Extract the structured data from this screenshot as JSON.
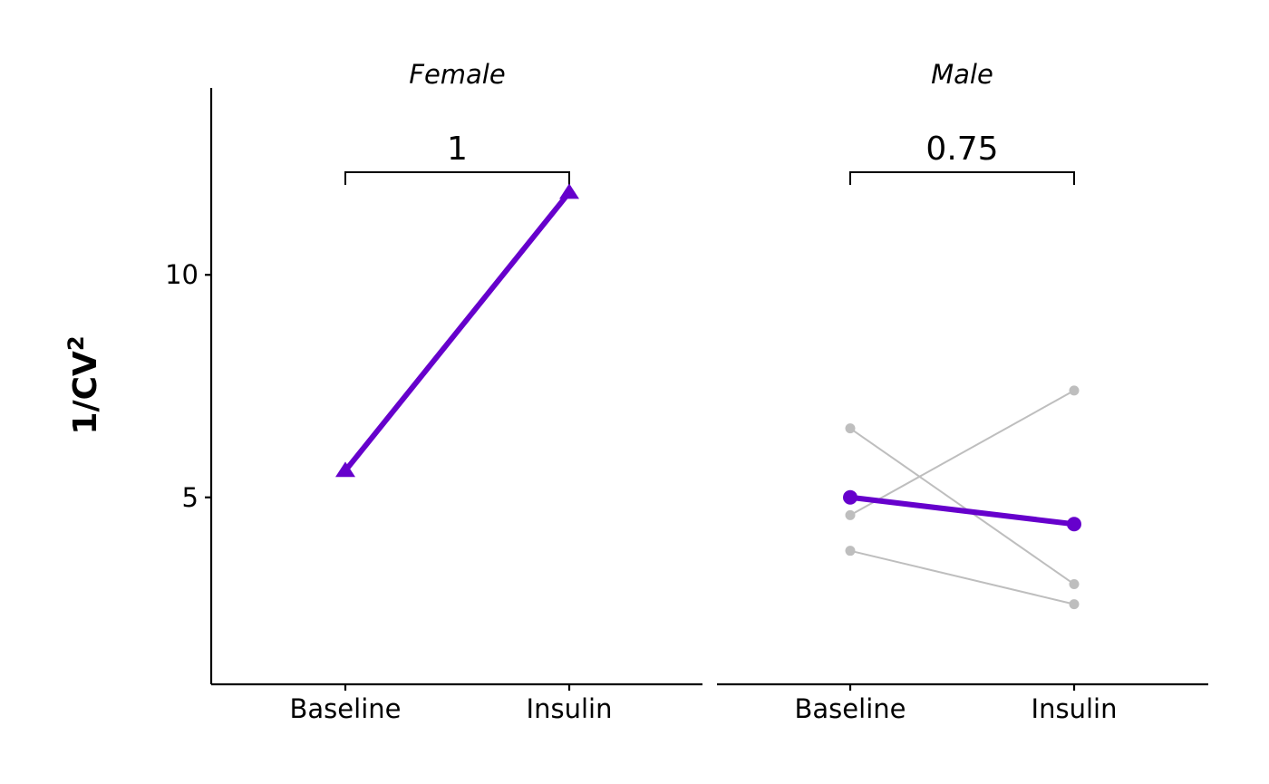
{
  "chart_data": {
    "type": "line",
    "ylabel": "1/CV",
    "ylabel_superscript": "2",
    "ylim": [
      0.8,
      14.2
    ],
    "yticks": [
      5,
      10
    ],
    "categories": [
      "Baseline",
      "Insulin"
    ],
    "colors": {
      "mean": "#6600cc",
      "individual": "#bebebe",
      "axis": "#000000"
    },
    "facets": [
      {
        "title": "Female",
        "p_value": "1",
        "marker": "triangle",
        "individuals": [],
        "mean": {
          "name": "mean",
          "values": [
            5.6,
            11.85
          ]
        }
      },
      {
        "title": "Male",
        "p_value": "0.75",
        "marker": "circle",
        "individuals": [
          {
            "name": "subject-1",
            "values": [
              6.55,
              3.05
            ]
          },
          {
            "name": "subject-2",
            "values": [
              4.6,
              7.4
            ]
          },
          {
            "name": "subject-3",
            "values": [
              3.8,
              2.6
            ]
          }
        ],
        "mean": {
          "name": "mean",
          "values": [
            5.0,
            4.4
          ]
        }
      }
    ]
  }
}
